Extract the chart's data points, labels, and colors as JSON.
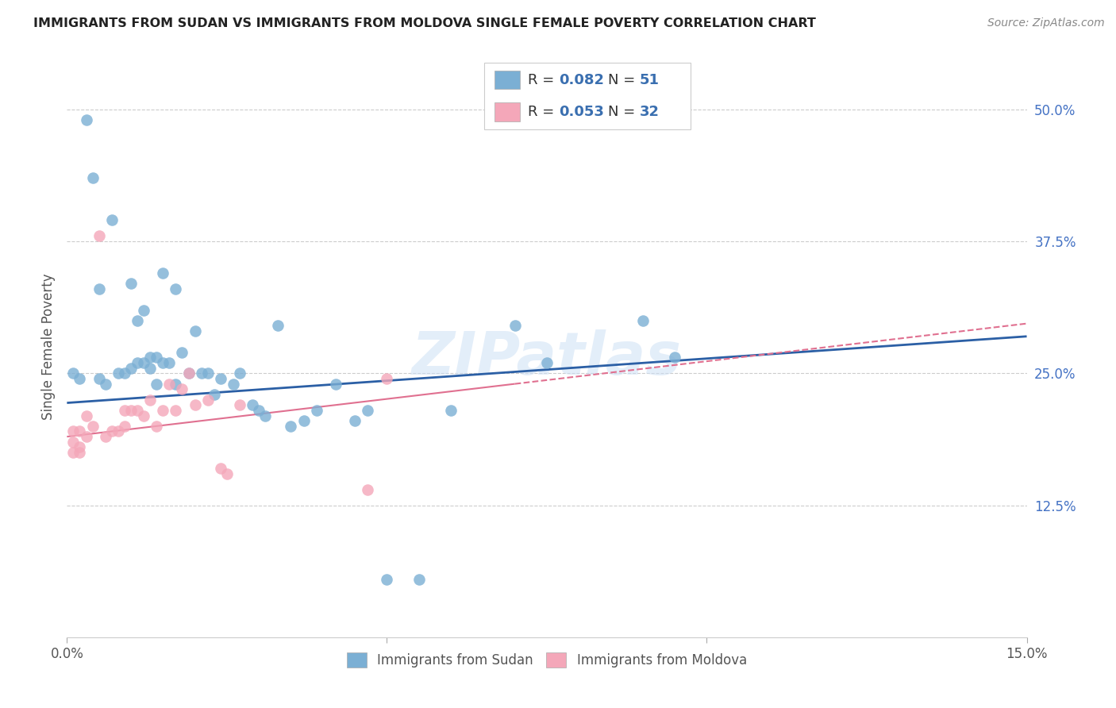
{
  "title": "IMMIGRANTS FROM SUDAN VS IMMIGRANTS FROM MOLDOVA SINGLE FEMALE POVERTY CORRELATION CHART",
  "source": "Source: ZipAtlas.com",
  "ylabel_label": "Single Female Poverty",
  "xlim": [
    0.0,
    0.15
  ],
  "ylim": [
    0.0,
    0.55
  ],
  "sudan_color": "#7bafd4",
  "moldova_color": "#f4a7b9",
  "sudan_R": 0.082,
  "sudan_N": 51,
  "moldova_R": 0.053,
  "moldova_N": 32,
  "line_color_sudan": "#2b5fa5",
  "line_color_moldova": "#e07090",
  "watermark": "ZIPatlas",
  "sudan_x": [
    0.001,
    0.002,
    0.003,
    0.004,
    0.005,
    0.005,
    0.006,
    0.007,
    0.008,
    0.009,
    0.01,
    0.01,
    0.011,
    0.011,
    0.012,
    0.012,
    0.013,
    0.013,
    0.014,
    0.014,
    0.015,
    0.015,
    0.016,
    0.017,
    0.017,
    0.018,
    0.019,
    0.02,
    0.021,
    0.022,
    0.023,
    0.024,
    0.026,
    0.027,
    0.029,
    0.03,
    0.031,
    0.033,
    0.035,
    0.037,
    0.039,
    0.042,
    0.045,
    0.047,
    0.05,
    0.055,
    0.06,
    0.07,
    0.075,
    0.09,
    0.095
  ],
  "sudan_y": [
    0.25,
    0.245,
    0.49,
    0.435,
    0.245,
    0.33,
    0.24,
    0.395,
    0.25,
    0.25,
    0.255,
    0.335,
    0.26,
    0.3,
    0.26,
    0.31,
    0.255,
    0.265,
    0.24,
    0.265,
    0.26,
    0.345,
    0.26,
    0.33,
    0.24,
    0.27,
    0.25,
    0.29,
    0.25,
    0.25,
    0.23,
    0.245,
    0.24,
    0.25,
    0.22,
    0.215,
    0.21,
    0.295,
    0.2,
    0.205,
    0.215,
    0.24,
    0.205,
    0.215,
    0.055,
    0.055,
    0.215,
    0.295,
    0.26,
    0.3,
    0.265
  ],
  "moldova_x": [
    0.001,
    0.001,
    0.001,
    0.002,
    0.002,
    0.002,
    0.003,
    0.003,
    0.004,
    0.005,
    0.006,
    0.007,
    0.008,
    0.009,
    0.009,
    0.01,
    0.011,
    0.012,
    0.013,
    0.014,
    0.015,
    0.016,
    0.017,
    0.018,
    0.019,
    0.02,
    0.022,
    0.024,
    0.025,
    0.027,
    0.047,
    0.05
  ],
  "moldova_y": [
    0.195,
    0.185,
    0.175,
    0.195,
    0.175,
    0.18,
    0.19,
    0.21,
    0.2,
    0.38,
    0.19,
    0.195,
    0.195,
    0.215,
    0.2,
    0.215,
    0.215,
    0.21,
    0.225,
    0.2,
    0.215,
    0.24,
    0.215,
    0.235,
    0.25,
    0.22,
    0.225,
    0.16,
    0.155,
    0.22,
    0.14,
    0.245
  ]
}
